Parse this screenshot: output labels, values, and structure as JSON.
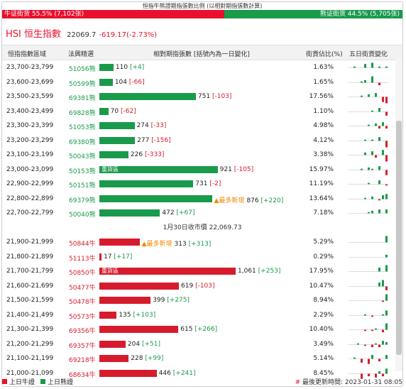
{
  "title": "恒指牛熊證期指張數比例 (以相對期指張數計算)",
  "ratio": {
    "bull_label": "牛证街货 55.5% (7,102张)",
    "bear_label": "熊证街货 44.5% (5,705张)",
    "bull_fraction": 0.555,
    "bull_color": "#e8112d",
    "bear_color": "#1a9a4b"
  },
  "index": {
    "name": "HSI 恒生指數",
    "value": "22069.7",
    "change": "-619.17(-2.73%)"
  },
  "headers": {
    "range": "恒指指數區域",
    "code": "法興精選",
    "contracts": "相對期指張數 [括號內為一日變化]",
    "pct": "街貨佔比(%)",
    "five_day": "五日街貨變化"
  },
  "bear_rows": [
    {
      "range": "23,700-23,799",
      "code": "51056熊",
      "value": 110,
      "value_label": "110",
      "change": "[+4]",
      "change_sign": "pos",
      "pct": "1.63%",
      "spark": [
        0,
        1,
        0,
        0,
        3,
        0,
        4,
        0,
        1,
        0,
        1
      ]
    },
    {
      "range": "23,600-23,699",
      "code": "50599熊",
      "value": 104,
      "value_label": "104",
      "change": "[-66]",
      "change_sign": "neg",
      "pct": "1.65%",
      "spark": [
        0,
        0,
        0,
        1,
        2,
        0,
        5,
        0,
        -2,
        0,
        0
      ]
    },
    {
      "range": "23,500-23,599",
      "code": "69381熊",
      "value": 751,
      "value_label": "751",
      "change": "[-103]",
      "change_sign": "neg",
      "pct": "17.56%",
      "spark": [
        0,
        0,
        0,
        1,
        0,
        2,
        0,
        3,
        0,
        -4,
        -5
      ]
    },
    {
      "range": "23,400-23,499",
      "code": "69828熊",
      "value": 70,
      "value_label": "70",
      "change": "[-62]",
      "change_sign": "neg",
      "pct": "1.10%",
      "spark": [
        0,
        0,
        0,
        0,
        0,
        0,
        1,
        0,
        3,
        0,
        -3
      ]
    },
    {
      "range": "23,300-23,399",
      "code": "51053熊",
      "value": 274,
      "value_label": "274",
      "change": "[-33]",
      "change_sign": "neg",
      "pct": "4.98%",
      "spark": [
        0,
        0,
        0,
        0,
        0,
        1,
        0,
        2,
        -2,
        3,
        -2
      ]
    },
    {
      "range": "23,200-23,299",
      "code": "69380熊",
      "value": 277,
      "value_label": "277",
      "change": "[-156]",
      "change_sign": "neg",
      "pct": "4.12%",
      "spark": [
        0,
        0,
        0,
        0,
        1,
        0,
        1,
        0,
        3,
        0,
        -5
      ]
    },
    {
      "range": "23,100-23,199",
      "code": "50043熊",
      "value": 226,
      "value_label": "226",
      "change": "[-333]",
      "change_sign": "neg",
      "pct": "3.38%",
      "spark": [
        0,
        0,
        0,
        0,
        2,
        0,
        3,
        -2,
        0,
        4,
        -5
      ]
    },
    {
      "range": "23,000-23,099",
      "code": "50153熊",
      "value": 921,
      "value_label": "921",
      "change": "[-105]",
      "change_sign": "neg",
      "pct": "15.97%",
      "heavy": "重貨區",
      "spark": [
        0,
        0,
        0,
        1,
        0,
        2,
        1,
        0,
        3,
        0,
        -4
      ]
    },
    {
      "range": "22,900-22,999",
      "code": "50151熊",
      "value": 731,
      "value_label": "731",
      "change": "[-2]",
      "change_sign": "neg",
      "pct": "11.19%",
      "spark": [
        0,
        0,
        0,
        0,
        0,
        1,
        0,
        0,
        3,
        0,
        -1
      ]
    },
    {
      "range": "22,800-22,899",
      "code": "69379熊",
      "value": 876,
      "value_label": "876",
      "change": "[+220]",
      "change_sign": "pos",
      "pct": "13.64%",
      "mark": "▲最多新增",
      "spark": [
        0,
        0,
        0,
        0,
        1,
        0,
        2,
        0,
        -1,
        3,
        4
      ]
    },
    {
      "range": "22,700-22,799",
      "code": "50040熊",
      "value": 472,
      "value_label": "472",
      "change": "[+67]",
      "change_sign": "pos",
      "pct": "7.18%",
      "spark": [
        0,
        0,
        0,
        0,
        0,
        1,
        2,
        0,
        3,
        0,
        3
      ]
    }
  ],
  "divider": "1月30日收市價 22,069.73",
  "bull_rows": [
    {
      "range": "21,900-21,999",
      "code": "50844牛",
      "value": 313,
      "value_label": "313",
      "change": "[+313]",
      "change_sign": "pos",
      "pct": "5.29%",
      "mark": "▲最多新增",
      "spark": [
        0,
        0,
        0,
        0,
        0,
        0,
        0,
        0,
        0,
        0,
        5
      ]
    },
    {
      "range": "21,800-21,899",
      "code": "51113牛",
      "value": 17,
      "value_label": "17",
      "change": "[+17]",
      "change_sign": "pos",
      "pct": "0.29%",
      "spark": [
        0,
        0,
        0,
        0,
        0,
        0,
        0,
        0,
        0,
        0,
        2
      ]
    },
    {
      "range": "21,700-21,799",
      "code": "50850牛",
      "value": 1061,
      "value_label": "1,061",
      "change": "[+253]",
      "change_sign": "pos",
      "pct": "17.95%",
      "heavy": "重貨區",
      "spark": [
        0,
        0,
        0,
        0,
        0,
        0,
        0,
        0,
        3,
        0,
        5
      ]
    },
    {
      "range": "21,600-21,699",
      "code": "50477牛",
      "value": 619,
      "value_label": "619",
      "change": "[-103]",
      "change_sign": "neg",
      "pct": "10.47%",
      "spark": [
        0,
        0,
        0,
        0,
        0,
        0,
        0,
        0,
        3,
        5,
        -3
      ]
    },
    {
      "range": "21,500-21,599",
      "code": "50478牛",
      "value": 399,
      "value_label": "399",
      "change": "[+275]",
      "change_sign": "pos",
      "pct": "8.94%",
      "spark": [
        0,
        0,
        0,
        0,
        0,
        0,
        0,
        0,
        0,
        -1,
        5
      ]
    },
    {
      "range": "21,400-21,499",
      "code": "50573牛",
      "value": 135,
      "value_label": "135",
      "change": "[+103]",
      "change_sign": "pos",
      "pct": "2.29%",
      "spark": [
        0,
        0,
        0,
        0,
        1,
        0,
        -1,
        0,
        0,
        1,
        4
      ]
    },
    {
      "range": "21,300-21,399",
      "code": "69356牛",
      "value": 615,
      "value_label": "615",
      "change": "[+266]",
      "change_sign": "pos",
      "pct": "10.40%",
      "spark": [
        0,
        0,
        0,
        0,
        -1,
        0,
        -1,
        1,
        0,
        -2,
        5
      ]
    },
    {
      "range": "21,200-21,299",
      "code": "69357牛",
      "value": 204,
      "value_label": "204",
      "change": "[+51]",
      "change_sign": "pos",
      "pct": "3.49%",
      "spark": [
        0,
        0,
        1,
        0,
        -1,
        0,
        -2,
        1,
        -2,
        3,
        2
      ]
    },
    {
      "range": "21,100-21,199",
      "code": "69218牛",
      "value": 228,
      "value_label": "228",
      "change": "[+99]",
      "change_sign": "pos",
      "pct": "5.14%",
      "spark": [
        0,
        1,
        0,
        -3,
        0,
        -4,
        3,
        0,
        -2,
        0,
        3
      ]
    },
    {
      "range": "21,000-21,099",
      "code": "68634牛",
      "value": 446,
      "value_label": "446",
      "change": "[+241]",
      "change_sign": "pos",
      "pct": "8.45%",
      "spark": [
        0,
        0,
        0,
        -4,
        0,
        -2,
        0,
        -3,
        2,
        -2,
        4
      ]
    }
  ],
  "bar_max_value": 1061,
  "legend": {
    "bull": "上日牛證",
    "bear": "上日熊證"
  },
  "update": {
    "label": "最後更新時間: 2023-01-31 08:05",
    "warn_icon": "#"
  }
}
